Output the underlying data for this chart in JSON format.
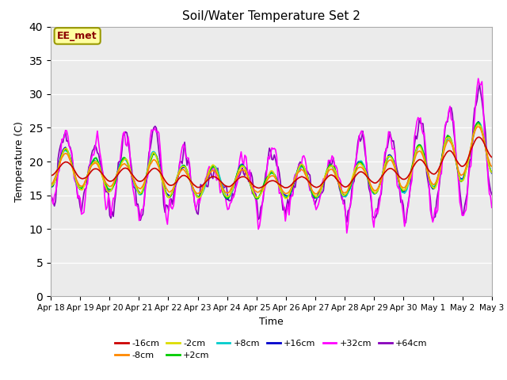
{
  "title": "Soil/Water Temperature Set 2",
  "xlabel": "Time",
  "ylabel": "Temperature (C)",
  "ylim": [
    0,
    40
  ],
  "yticks": [
    0,
    5,
    10,
    15,
    20,
    25,
    30,
    35,
    40
  ],
  "fig_facecolor": "#ffffff",
  "plot_bg_color": "#ebebeb",
  "annotation_text": "EE_met",
  "annotation_color": "#8B0000",
  "annotation_bg": "#ffffa0",
  "annotation_border": "#999900",
  "series_order": [
    "+64cm",
    "+32cm",
    "+16cm",
    "+8cm",
    "+2cm",
    "-2cm",
    "-8cm",
    "-16cm"
  ],
  "series": {
    "-16cm": {
      "color": "#cc0000",
      "lw": 1.2
    },
    "-8cm": {
      "color": "#ff8800",
      "lw": 1.2
    },
    "-2cm": {
      "color": "#dddd00",
      "lw": 1.2
    },
    "+2cm": {
      "color": "#00cc00",
      "lw": 1.2
    },
    "+8cm": {
      "color": "#00cccc",
      "lw": 1.2
    },
    "+16cm": {
      "color": "#0000cc",
      "lw": 1.2
    },
    "+32cm": {
      "color": "#ff00ff",
      "lw": 1.2
    },
    "+64cm": {
      "color": "#8800bb",
      "lw": 1.2
    }
  },
  "tick_labels": [
    "Apr 18",
    "Apr 19",
    "Apr 20",
    "Apr 21",
    "Apr 22",
    "Apr 23",
    "Apr 24",
    "Apr 25",
    "Apr 26",
    "Apr 27",
    "Apr 28",
    "Apr 29",
    "Apr 30",
    "May 1",
    "May 2",
    "May 3"
  ],
  "legend_row1": [
    "-16cm",
    "-8cm",
    "-2cm",
    "+2cm",
    "+8cm",
    "+16cm"
  ],
  "legend_row2": [
    "+32cm",
    "+64cm"
  ]
}
